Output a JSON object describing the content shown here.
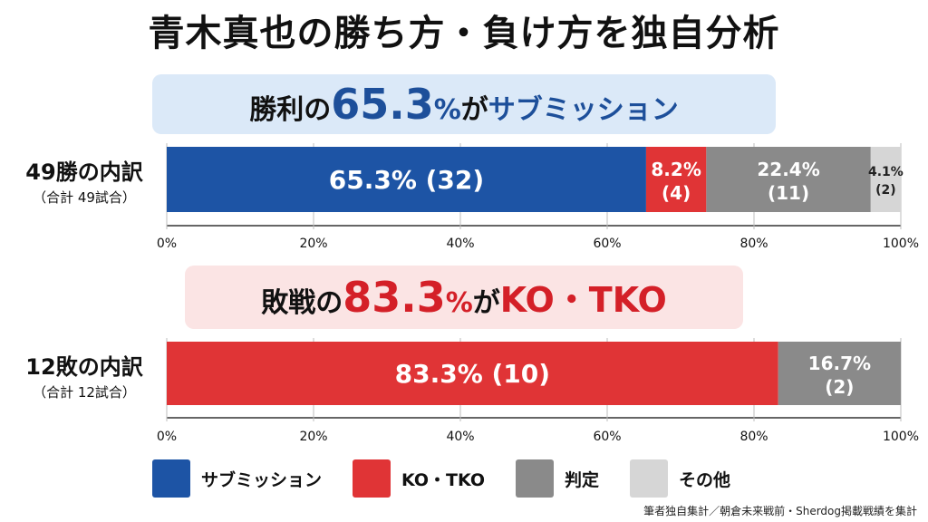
{
  "title": "青木真也の勝ち方・負け方を独自分析",
  "banner_win": {
    "lead": "勝利の",
    "num": "65.3",
    "pct": "%",
    "mid": "が",
    "tail": "サブミッション"
  },
  "banner_loss": {
    "lead": "敗戦の",
    "num": "83.3",
    "pct": "%",
    "mid": "が",
    "tail": "KO・TKO"
  },
  "colors": {
    "submission": "#1d54a5",
    "ko_tko": "#e03436",
    "decision": "#8a8a8a",
    "other": "#d6d6d6"
  },
  "legend": [
    {
      "label": "サブミッション",
      "color": "#1d54a5"
    },
    {
      "label": "KO・TKO",
      "color": "#e03436"
    },
    {
      "label": "判定",
      "color": "#8a8a8a"
    },
    {
      "label": "その他",
      "color": "#d6d6d6"
    }
  ],
  "source": "筆者独自集計／朝倉未来戦前・Sherdog掲載戦績を集計",
  "chart_data": [
    {
      "type": "bar",
      "orientation": "horizontal-stacked",
      "label": "49勝の内訳",
      "sublabel": "（合計 49試合）",
      "xlim": [
        0,
        100
      ],
      "ticks": [
        "0%",
        "20%",
        "40%",
        "60%",
        "80%",
        "100%"
      ],
      "segments": [
        {
          "category": "サブミッション",
          "percent": 65.3,
          "count": 32,
          "pct_label": "65.3%",
          "count_label": "(32)",
          "color": "#1d54a5"
        },
        {
          "category": "KO・TKO",
          "percent": 8.2,
          "count": 4,
          "pct_label": "8.2%",
          "count_label": "(4)",
          "color": "#e03436"
        },
        {
          "category": "判定",
          "percent": 22.4,
          "count": 11,
          "pct_label": "22.4%",
          "count_label": "(11)",
          "color": "#8a8a8a"
        },
        {
          "category": "その他",
          "percent": 4.1,
          "count": 2,
          "pct_label": "4.1%",
          "count_label": "(2)",
          "color": "#d6d6d6"
        }
      ]
    },
    {
      "type": "bar",
      "orientation": "horizontal-stacked",
      "label": "12敗の内訳",
      "sublabel": "（合計 12試合）",
      "xlim": [
        0,
        100
      ],
      "ticks": [
        "0%",
        "20%",
        "40%",
        "60%",
        "80%",
        "100%"
      ],
      "segments": [
        {
          "category": "KO・TKO",
          "percent": 83.3,
          "count": 10,
          "pct_label": "83.3%",
          "count_label": "(10)",
          "color": "#e03436"
        },
        {
          "category": "判定",
          "percent": 16.7,
          "count": 2,
          "pct_label": "16.7%",
          "count_label": "(2)",
          "color": "#8a8a8a"
        }
      ]
    }
  ]
}
